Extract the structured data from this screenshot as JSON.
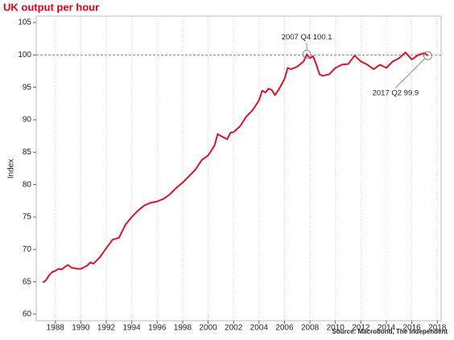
{
  "chart_data": {
    "type": "line",
    "title": "UK output per hour",
    "y_label": "Index",
    "source": "Source: Macrobond, The Independent",
    "x": [
      1987.0,
      1987.25,
      1987.5,
      1987.75,
      1988.0,
      1988.25,
      1988.5,
      1988.75,
      1989.0,
      1989.25,
      1989.5,
      1989.75,
      1990.0,
      1990.5,
      1990.75,
      1991.0,
      1991.5,
      1992.0,
      1992.5,
      1993.0,
      1993.5,
      1994.0,
      1994.5,
      1995.0,
      1995.5,
      1996.0,
      1996.5,
      1997.0,
      1997.5,
      1998.0,
      1998.5,
      1999.0,
      1999.5,
      2000.0,
      2000.5,
      2000.75,
      2001.0,
      2001.5,
      2001.75,
      2002.0,
      2002.5,
      2003.0,
      2003.5,
      2004.0,
      2004.25,
      2004.5,
      2004.75,
      2005.0,
      2005.25,
      2005.5,
      2006.0,
      2006.25,
      2006.5,
      2007.0,
      2007.5,
      2007.75,
      2008.0,
      2008.25,
      2008.5,
      2008.75,
      2009.0,
      2009.5,
      2010.0,
      2010.5,
      2011.0,
      2011.5,
      2012.0,
      2012.5,
      2013.0,
      2013.5,
      2014.0,
      2014.5,
      2015.0,
      2015.5,
      2016.0,
      2016.5,
      2017.0,
      2017.25
    ],
    "series": [
      {
        "name": "UK output per hour",
        "color": "#d7142c",
        "values": [
          64.9,
          65.2,
          66.0,
          66.5,
          66.7,
          67.0,
          66.9,
          67.3,
          67.6,
          67.2,
          67.1,
          67.0,
          67.0,
          67.5,
          68.0,
          67.8,
          68.8,
          70.2,
          71.5,
          71.8,
          73.8,
          75.0,
          76.0,
          76.8,
          77.2,
          77.4,
          77.8,
          78.5,
          79.5,
          80.3,
          81.3,
          82.3,
          83.8,
          84.5,
          86.0,
          87.8,
          87.5,
          87.0,
          88.0,
          88.1,
          89.0,
          90.5,
          91.5,
          93.0,
          94.5,
          94.2,
          94.8,
          94.6,
          93.8,
          94.5,
          96.3,
          98.0,
          97.8,
          98.2,
          99.0,
          100.1,
          99.5,
          99.8,
          98.5,
          97.0,
          96.8,
          97.0,
          98.0,
          98.5,
          98.6,
          99.9,
          99.0,
          98.5,
          97.8,
          98.5,
          98.0,
          99.0,
          99.5,
          100.4,
          99.3,
          100.0,
          100.3,
          99.9
        ]
      }
    ],
    "reference_line": 100,
    "annotations": [
      {
        "text": "2007 Q4 100.1",
        "x": 2007.75,
        "y": 100.1
      },
      {
        "text": "2017 Q2 99.9",
        "x": 2017.25,
        "y": 99.9
      }
    ],
    "xlim": [
      1986.5,
      2018.3
    ],
    "xticks": [
      1988,
      1990,
      1992,
      1994,
      1996,
      1998,
      2000,
      2002,
      2004,
      2006,
      2008,
      2010,
      2012,
      2014,
      2016,
      2018
    ],
    "ylim": [
      59,
      106
    ],
    "yticks": [
      60,
      65,
      70,
      75,
      80,
      85,
      90,
      95,
      100,
      105
    ],
    "grid": true
  }
}
